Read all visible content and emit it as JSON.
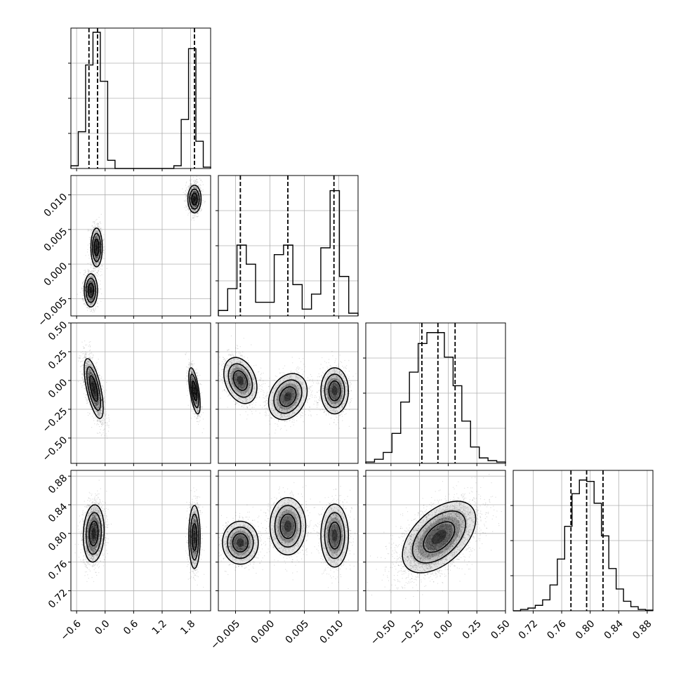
{
  "chart_data": {
    "type": "corner",
    "parameters": [
      {
        "range": [
          -0.72,
          2.22
        ],
        "ticks": [
          -0.6,
          0.0,
          0.6,
          1.2,
          1.8
        ],
        "tick_labels": [
          "−0.6",
          "0.0",
          "0.6",
          "1.2",
          "1.8"
        ],
        "histogram": [
          0.02,
          0.27,
          0.76,
          1.0,
          0.64,
          0.06,
          0,
          0,
          0,
          0,
          0,
          0,
          0,
          0,
          0.02,
          0.36,
          0.88,
          0.2,
          0.01
        ],
        "quantiles": [
          -0.34,
          -0.16,
          1.88
        ]
      },
      {
        "range": [
          -0.0075,
          0.0128
        ],
        "ticks": [
          -0.005,
          0.0,
          0.005,
          0.01
        ],
        "tick_labels": [
          "−0.005",
          "0.000",
          "0.005",
          "0.010"
        ],
        "histogram": [
          0.04,
          0.2,
          0.52,
          0.38,
          0.1,
          0.1,
          0.45,
          0.52,
          0.23,
          0.05,
          0.16,
          0.5,
          0.92,
          0.29,
          0.02
        ],
        "quantiles": [
          -0.0043,
          0.0026,
          0.0093
        ]
      },
      {
        "range": [
          -0.72,
          0.5
        ],
        "ticks": [
          -0.5,
          -0.25,
          0.0,
          0.25,
          0.5
        ],
        "tick_labels": [
          "−0.50",
          "−0.25",
          "0.00",
          "0.25",
          "0.50"
        ],
        "histogram": [
          0.01,
          0.03,
          0.08,
          0.22,
          0.45,
          0.67,
          0.88,
          0.96,
          0.96,
          0.78,
          0.57,
          0.31,
          0.12,
          0.04,
          0.02,
          0.01
        ],
        "quantiles": [
          -0.23,
          -0.09,
          0.06
        ]
      },
      {
        "range": [
          0.692,
          0.888
        ],
        "ticks": [
          0.72,
          0.76,
          0.8,
          0.84,
          0.88
        ],
        "tick_labels": [
          "0.72",
          "0.76",
          "0.80",
          "0.84",
          "0.88"
        ],
        "histogram": [
          0.0,
          0.01,
          0.02,
          0.04,
          0.08,
          0.19,
          0.38,
          0.62,
          0.86,
          0.96,
          0.95,
          0.79,
          0.55,
          0.31,
          0.16,
          0.07,
          0.03,
          0.01,
          0.005
        ],
        "quantiles": [
          0.773,
          0.795,
          0.818
        ]
      }
    ],
    "pairs": [
      {
        "row": 1,
        "col": 0,
        "clusters": [
          {
            "x": -0.3,
            "y": -0.0038,
            "sx": 0.07,
            "sy": 0.0012,
            "rho": 0.0,
            "n": 1500
          },
          {
            "x": -0.18,
            "y": 0.0024,
            "sx": 0.06,
            "sy": 0.0014,
            "rho": 0.0,
            "n": 1500
          },
          {
            "x": 1.88,
            "y": 0.0094,
            "sx": 0.07,
            "sy": 0.001,
            "rho": 0.0,
            "n": 1500
          }
        ]
      },
      {
        "row": 2,
        "col": 0,
        "clusters": [
          {
            "x": -0.24,
            "y": -0.07,
            "sx": 0.1,
            "sy": 0.13,
            "rho": -0.65,
            "n": 2600
          },
          {
            "x": 1.88,
            "y": -0.09,
            "sx": 0.06,
            "sy": 0.1,
            "rho": -0.6,
            "n": 1500
          }
        ]
      },
      {
        "row": 2,
        "col": 1,
        "clusters": [
          {
            "x": -0.0043,
            "y": 0.0,
            "sx": 0.0012,
            "sy": 0.1,
            "rho": -0.3,
            "n": 1400
          },
          {
            "x": 0.0026,
            "y": -0.14,
            "sx": 0.0014,
            "sy": 0.1,
            "rho": 0.25,
            "n": 1400
          },
          {
            "x": 0.0094,
            "y": -0.09,
            "sx": 0.001,
            "sy": 0.1,
            "rho": 0.0,
            "n": 1400
          }
        ]
      },
      {
        "row": 3,
        "col": 0,
        "clusters": [
          {
            "x": -0.24,
            "y": 0.8,
            "sx": 0.11,
            "sy": 0.02,
            "rho": 0.1,
            "n": 2600
          },
          {
            "x": 1.88,
            "y": 0.795,
            "sx": 0.06,
            "sy": 0.022,
            "rho": 0.0,
            "n": 1500
          }
        ]
      },
      {
        "row": 3,
        "col": 1,
        "clusters": [
          {
            "x": -0.0043,
            "y": 0.787,
            "sx": 0.0013,
            "sy": 0.015,
            "rho": 0.0,
            "n": 1400
          },
          {
            "x": 0.0026,
            "y": 0.81,
            "sx": 0.0013,
            "sy": 0.02,
            "rho": 0.0,
            "n": 1400
          },
          {
            "x": 0.0094,
            "y": 0.797,
            "sx": 0.001,
            "sy": 0.022,
            "rho": 0.0,
            "n": 1400
          }
        ]
      },
      {
        "row": 3,
        "col": 2,
        "clusters": [
          {
            "x": -0.08,
            "y": 0.795,
            "sx": 0.16,
            "sy": 0.025,
            "rho": 0.5,
            "n": 4500
          }
        ]
      }
    ],
    "grid": true,
    "xlabel": "",
    "ylabel": "",
    "title": ""
  },
  "colors": {
    "line": "#000000",
    "grid": "#b0b0b0",
    "points": "#000000",
    "frame": "#000000"
  }
}
